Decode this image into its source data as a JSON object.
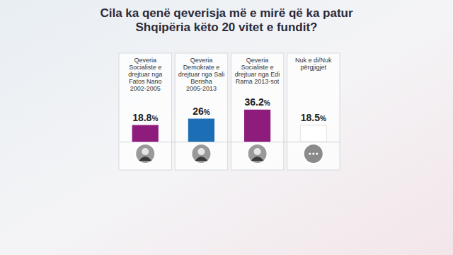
{
  "chart_data": {
    "type": "bar",
    "title": "Cila ka qenë qeverisja më e mirë që ka patur Shqipëria këto 20 vitet e fundit?",
    "categories": [
      "Qeveria Socialiste e drejtuar nga Fatos Nano 2002-2005",
      "Qeveria Demokrate e drejtuar nga Sali Berisha 2005-2013",
      "Qeveria Socialiste e drejtuar nga Edi Rama 2013-sot",
      "Nuk e di/Nuk përgjigjet"
    ],
    "values": [
      18.8,
      26,
      36.2,
      18.5
    ],
    "value_labels": [
      "18.8%",
      "26%",
      "36.2%",
      "18.5%"
    ],
    "colors": [
      "#8e1c7d",
      "#1d6fb5",
      "#8e1c7d",
      "#ffffff"
    ],
    "ylim": [
      0,
      100
    ],
    "tick_labels": false,
    "grid": false,
    "data_labels": true
  }
}
